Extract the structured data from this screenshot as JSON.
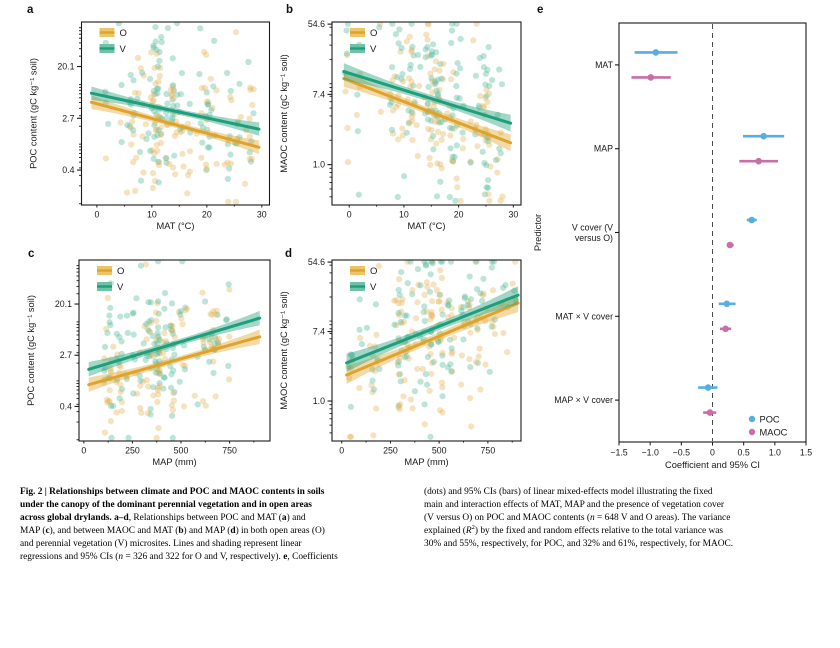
{
  "figure": {
    "panel_labels": [
      "a",
      "b",
      "c",
      "d",
      "e"
    ],
    "background": "#ffffff",
    "text_color": "#1a1a1a"
  },
  "colors": {
    "o_line": "#DFA32B",
    "o_band": "rgba(224,166,48,0.42)",
    "o_dot": "#E6B258",
    "o_swatch": "#EEC469",
    "v_line": "#1D9E7C",
    "v_band": "rgba(48,164,128,0.45)",
    "v_dot": "#4FB798",
    "v_swatch": "#6FC2A6",
    "poc": "#57AEE2",
    "maoc": "#C76FA6",
    "axis": "#1a1a1a",
    "dash": "#4a4a4a"
  },
  "chart_data": [
    {
      "id": "a",
      "type": "scatter",
      "xlabel": "MAT (°C)",
      "ylabel": "POC content (gC kg⁻¹ soil)",
      "x_ticks": [
        {
          "v": 0,
          "label": "0"
        },
        {
          "v": 10,
          "label": "10"
        },
        {
          "v": 20,
          "label": "20"
        },
        {
          "v": 30,
          "label": "30"
        }
      ],
      "x_minor": [
        5,
        15,
        25
      ],
      "xlim": [
        -2.8,
        31.4
      ],
      "y_scale": "ln",
      "y_ticks": [
        {
          "ln": 3,
          "label": "20.1"
        },
        {
          "ln": 1,
          "label": "2.7"
        },
        {
          "ln": -1,
          "label": "0.4"
        }
      ],
      "ylim_ln": [
        -2.35,
        4.72
      ],
      "legend": [
        "O",
        "V"
      ],
      "series": [
        {
          "name": "O",
          "line_ln": {
            "x0": -1,
            "y0": 1.62,
            "x1": 29.5,
            "y1": -0.12
          },
          "band_end": 0.26,
          "band_mid": 0.11
        },
        {
          "name": "V",
          "line_ln": {
            "x0": -1,
            "y0": 1.97,
            "x1": 29.5,
            "y1": 0.58
          },
          "band_end": 0.26,
          "band_mid": 0.11
        }
      ],
      "scatter": {
        "seed": 11,
        "sites": 48,
        "x_mean": 16,
        "x_sd": 8,
        "x_min": -1,
        "x_max": 29.5,
        "resid_sd": 1.35
      }
    },
    {
      "id": "b",
      "type": "scatter",
      "xlabel": "MAT (°C)",
      "ylabel": "MAOC content (gC kg⁻¹ soil)",
      "x_ticks": [
        {
          "v": 0,
          "label": "0"
        },
        {
          "v": 10,
          "label": "10"
        },
        {
          "v": 20,
          "label": "20"
        },
        {
          "v": 30,
          "label": "30"
        }
      ],
      "x_minor": [
        5,
        15,
        25
      ],
      "xlim": [
        -3.15,
        31.4
      ],
      "y_scale": "ln",
      "y_ticks": [
        {
          "ln": 4,
          "label": "54.6"
        },
        {
          "ln": 2,
          "label": "7.4"
        },
        {
          "ln": 0,
          "label": "1.0"
        }
      ],
      "ylim_ln": [
        -1.15,
        4.06
      ],
      "legend": [
        "O",
        "V"
      ],
      "series": [
        {
          "name": "O",
          "line_ln": {
            "x0": -1,
            "y0": 2.45,
            "x1": 29.5,
            "y1": 0.62
          },
          "band_end": 0.24,
          "band_mid": 0.1
        },
        {
          "name": "V",
          "line_ln": {
            "x0": -1,
            "y0": 2.65,
            "x1": 29.5,
            "y1": 1.18
          },
          "band_end": 0.24,
          "band_mid": 0.1
        }
      ],
      "scatter": {
        "seed": 23,
        "sites": 48,
        "x_mean": 16,
        "x_sd": 8,
        "x_min": -1,
        "x_max": 29.5,
        "resid_sd": 1.15
      }
    },
    {
      "id": "c",
      "type": "scatter",
      "xlabel": "MAP (mm)",
      "ylabel": "POC content (gC kg⁻¹ soil)",
      "x_ticks": [
        {
          "v": 0,
          "label": "0"
        },
        {
          "v": 250,
          "label": "250"
        },
        {
          "v": 500,
          "label": "500"
        },
        {
          "v": 750,
          "label": "750"
        }
      ],
      "x_minor": [
        125,
        375,
        625,
        875
      ],
      "xlim": [
        -25,
        958
      ],
      "y_scale": "ln",
      "y_ticks": [
        {
          "ln": 3,
          "label": "20.1"
        },
        {
          "ln": 1,
          "label": "2.7"
        },
        {
          "ln": -1,
          "label": "0.4"
        }
      ],
      "ylim_ln": [
        -2.35,
        4.72
      ],
      "legend": [
        "O",
        "V"
      ],
      "series": [
        {
          "name": "O",
          "line_ln": {
            "x0": 25,
            "y0": -0.15,
            "x1": 905,
            "y1": 1.72
          },
          "band_end": 0.28,
          "band_mid": 0.12
        },
        {
          "name": "V",
          "line_ln": {
            "x0": 25,
            "y0": 0.45,
            "x1": 905,
            "y1": 2.45
          },
          "band_end": 0.28,
          "band_mid": 0.12
        }
      ],
      "scatter": {
        "seed": 37,
        "sites": 48,
        "x_mean": 400,
        "x_sd": 215,
        "x_min": 25,
        "x_max": 900,
        "resid_sd": 1.35
      }
    },
    {
      "id": "d",
      "type": "scatter",
      "xlabel": "MAP (mm)",
      "ylabel": "MAOC content (gC kg⁻¹ soil)",
      "x_ticks": [
        {
          "v": 0,
          "label": "0"
        },
        {
          "v": 250,
          "label": "250"
        },
        {
          "v": 500,
          "label": "500"
        },
        {
          "v": 750,
          "label": "750"
        }
      ],
      "x_minor": [
        125,
        375,
        625,
        875
      ],
      "xlim": [
        -50,
        920
      ],
      "y_scale": "ln",
      "y_ticks": [
        {
          "ln": 4,
          "label": "54.6"
        },
        {
          "ln": 2,
          "label": "7.4"
        },
        {
          "ln": 0,
          "label": "1.0"
        }
      ],
      "ylim_ln": [
        -1.15,
        4.06
      ],
      "legend": [
        "O",
        "V"
      ],
      "series": [
        {
          "name": "O",
          "line_ln": {
            "x0": 25,
            "y0": 0.75,
            "x1": 905,
            "y1": 2.82
          },
          "band_end": 0.26,
          "band_mid": 0.11
        },
        {
          "name": "V",
          "line_ln": {
            "x0": 25,
            "y0": 1.1,
            "x1": 905,
            "y1": 3.05
          },
          "band_end": 0.26,
          "band_mid": 0.11
        }
      ],
      "scatter": {
        "seed": 51,
        "sites": 48,
        "x_mean": 400,
        "x_sd": 215,
        "x_min": 25,
        "x_max": 900,
        "resid_sd": 1.15
      }
    },
    {
      "id": "e",
      "type": "forest",
      "xlabel": "Coefficient and 95% CI",
      "ylabel": "Predictor",
      "x_ticks": [
        {
          "v": -1.5,
          "label": "−1.5"
        },
        {
          "v": -1.0,
          "label": "−1.0"
        },
        {
          "v": -0.5,
          "label": "−0.5"
        },
        {
          "v": 0,
          "label": "0"
        },
        {
          "v": 0.5,
          "label": "0.5"
        },
        {
          "v": 1.0,
          "label": "1.0"
        },
        {
          "v": 1.5,
          "label": "1.5"
        }
      ],
      "xlim": [
        -1.5,
        1.5
      ],
      "zero_line": 0,
      "predictors": [
        {
          "lines": [
            "MAT"
          ]
        },
        {
          "lines": [
            "MAP"
          ]
        },
        {
          "lines": [
            "V cover (V",
            "versus O)"
          ]
        },
        {
          "lines": [
            "MAT × V cover"
          ]
        },
        {
          "lines": [
            "MAP × V cover"
          ]
        }
      ],
      "series": [
        {
          "name": "POC",
          "values": [
            {
              "est": -0.91,
              "lo": -1.25,
              "hi": -0.56
            },
            {
              "est": 0.82,
              "lo": 0.49,
              "hi": 1.15
            },
            {
              "est": 0.63,
              "lo": 0.55,
              "hi": 0.71
            },
            {
              "est": 0.23,
              "lo": 0.1,
              "hi": 0.37
            },
            {
              "est": -0.07,
              "lo": -0.23,
              "hi": 0.08
            }
          ]
        },
        {
          "name": "MAOC",
          "values": [
            {
              "est": -0.99,
              "lo": -1.3,
              "hi": -0.67
            },
            {
              "est": 0.74,
              "lo": 0.43,
              "hi": 1.05
            },
            {
              "est": 0.28,
              "lo": 0.23,
              "hi": 0.34
            },
            {
              "est": 0.21,
              "lo": 0.12,
              "hi": 0.3
            },
            {
              "est": -0.04,
              "lo": -0.15,
              "hi": 0.06
            }
          ]
        }
      ],
      "legend": [
        "POC",
        "MAOC"
      ]
    }
  ],
  "caption": {
    "left_lines": [
      [
        {
          "t": "Fig. 2 | Relationships between climate and POC and MAOC contents in soils",
          "b": true
        }
      ],
      [
        {
          "t": "under the canopy of the dominant perennial vegetation and in open areas",
          "b": true
        }
      ],
      [
        {
          "t": "across global drylands. a–d",
          "b": true
        },
        {
          "t": ", Relationships between POC and MAT ("
        },
        {
          "t": "a",
          "b": true
        },
        {
          "t": ") and"
        }
      ],
      [
        {
          "t": "MAP ("
        },
        {
          "t": "c",
          "b": true
        },
        {
          "t": "), and between MAOC and MAT ("
        },
        {
          "t": "b",
          "b": true
        },
        {
          "t": ") and MAP ("
        },
        {
          "t": "d",
          "b": true
        },
        {
          "t": ") in both open areas (O)"
        }
      ],
      [
        {
          "t": "and perennial vegetation (V) microsites. Lines and shading represent linear"
        }
      ],
      [
        {
          "t": "regressions and 95% CIs ("
        },
        {
          "t": "n",
          "i": true
        },
        {
          "t": " = 326 and 322 for O and V, respectively). "
        },
        {
          "t": "e",
          "b": true
        },
        {
          "t": ", Coefficients"
        }
      ]
    ],
    "right_lines": [
      [
        {
          "t": "(dots) and 95% CIs (bars) of linear mixed-effects model illustrating the fixed"
        }
      ],
      [
        {
          "t": "main and interaction effects of MAT, MAP and the presence of vegetation cover"
        }
      ],
      [
        {
          "t": "(V versus O) on POC and MAOC contents ("
        },
        {
          "t": "n",
          "i": true
        },
        {
          "t": " = 648 V and O areas). The variance"
        }
      ],
      [
        {
          "t": "explained ("
        },
        {
          "t": "R",
          "i": true
        },
        {
          "t": "2",
          "sup": true
        },
        {
          "t": ") by the fixed and random effects relative to the total variance was"
        }
      ],
      [
        {
          "t": "30% and 55%, respectively, for POC, and 32% and 61%, respectively, for MAOC."
        }
      ]
    ]
  }
}
